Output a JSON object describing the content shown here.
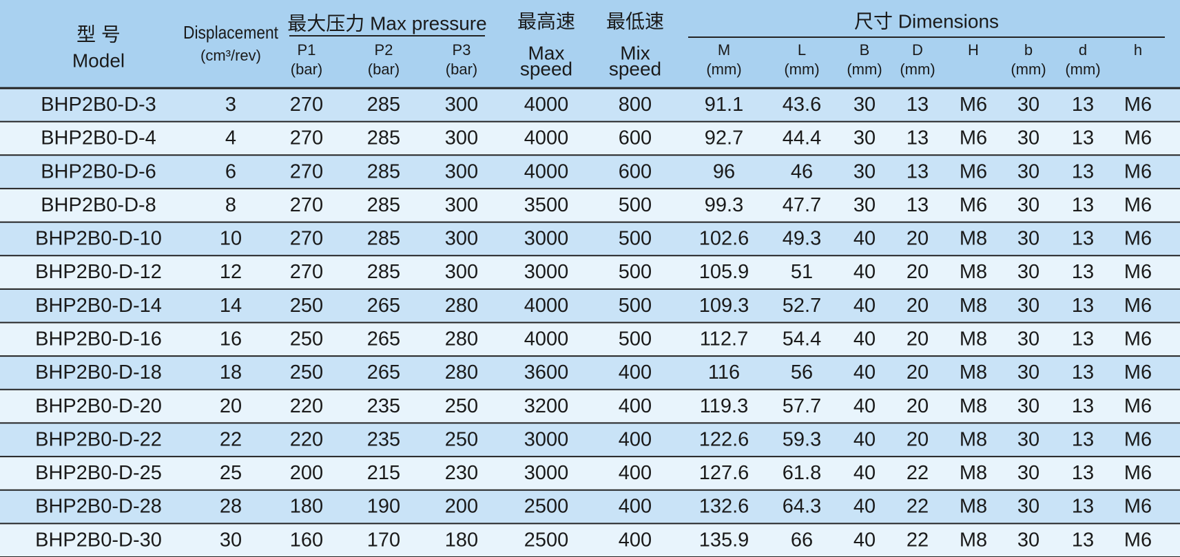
{
  "header": {
    "model": {
      "zh": "型 号",
      "en": "Model"
    },
    "displacement": {
      "label": "Displacement",
      "unit": "(cm³/rev)"
    },
    "pressure": {
      "label": "最大压力 Max pressure",
      "columns": [
        {
          "name": "P1",
          "unit": "(bar)"
        },
        {
          "name": "P2",
          "unit": "(bar)"
        },
        {
          "name": "P3",
          "unit": "(bar)"
        }
      ]
    },
    "max_speed": {
      "zh": "最高速",
      "en": [
        "Max",
        "speed"
      ]
    },
    "min_speed": {
      "zh": "最低速",
      "en": [
        "Mix",
        "speed"
      ]
    },
    "dimensions": {
      "label": "尺寸 Dimensions",
      "columns": [
        {
          "name": "M",
          "unit": "(mm)"
        },
        {
          "name": "L",
          "unit": "(mm)"
        },
        {
          "name": "B",
          "unit": "(mm)"
        },
        {
          "name": "D",
          "unit": "(mm)"
        },
        {
          "name": "H"
        },
        {
          "name": "b",
          "unit": "(mm)"
        },
        {
          "name": "d",
          "unit": "(mm)"
        },
        {
          "name": "h"
        }
      ]
    }
  },
  "rows": [
    [
      "BHP2B0-D-3",
      3,
      270,
      285,
      300,
      4000,
      800,
      91.1,
      43.6,
      30,
      13,
      "M6",
      30,
      13,
      "M6"
    ],
    [
      "BHP2B0-D-4",
      4,
      270,
      285,
      300,
      4000,
      600,
      92.7,
      44.4,
      30,
      13,
      "M6",
      30,
      13,
      "M6"
    ],
    [
      "BHP2B0-D-6",
      6,
      270,
      285,
      300,
      4000,
      600,
      96,
      46,
      30,
      13,
      "M6",
      30,
      13,
      "M6"
    ],
    [
      "BHP2B0-D-8",
      8,
      270,
      285,
      300,
      3500,
      500,
      99.3,
      47.7,
      30,
      13,
      "M6",
      30,
      13,
      "M6"
    ],
    [
      "BHP2B0-D-10",
      10,
      270,
      285,
      300,
      3000,
      500,
      102.6,
      49.3,
      40,
      20,
      "M8",
      30,
      13,
      "M6"
    ],
    [
      "BHP2B0-D-12",
      12,
      270,
      285,
      300,
      3000,
      500,
      105.9,
      51,
      40,
      20,
      "M8",
      30,
      13,
      "M6"
    ],
    [
      "BHP2B0-D-14",
      14,
      250,
      265,
      280,
      4000,
      500,
      109.3,
      52.7,
      40,
      20,
      "M8",
      30,
      13,
      "M6"
    ],
    [
      "BHP2B0-D-16",
      16,
      250,
      265,
      280,
      4000,
      500,
      112.7,
      54.4,
      40,
      20,
      "M8",
      30,
      13,
      "M6"
    ],
    [
      "BHP2B0-D-18",
      18,
      250,
      265,
      280,
      3600,
      400,
      116,
      56,
      40,
      20,
      "M8",
      30,
      13,
      "M6"
    ],
    [
      "BHP2B0-D-20",
      20,
      220,
      235,
      250,
      3200,
      400,
      119.3,
      57.7,
      40,
      20,
      "M8",
      30,
      13,
      "M6"
    ],
    [
      "BHP2B0-D-22",
      22,
      220,
      235,
      250,
      3000,
      400,
      122.6,
      59.3,
      40,
      20,
      "M8",
      30,
      13,
      "M6"
    ],
    [
      "BHP2B0-D-25",
      25,
      200,
      215,
      230,
      3000,
      400,
      127.6,
      61.8,
      40,
      22,
      "M8",
      30,
      13,
      "M6"
    ],
    [
      "BHP2B0-D-28",
      28,
      180,
      190,
      200,
      2500,
      400,
      132.6,
      64.3,
      40,
      22,
      "M8",
      30,
      13,
      "M6"
    ],
    [
      "BHP2B0-D-30",
      30,
      160,
      170,
      180,
      2500,
      400,
      135.9,
      66,
      40,
      22,
      "M8",
      30,
      13,
      "M6"
    ]
  ]
}
